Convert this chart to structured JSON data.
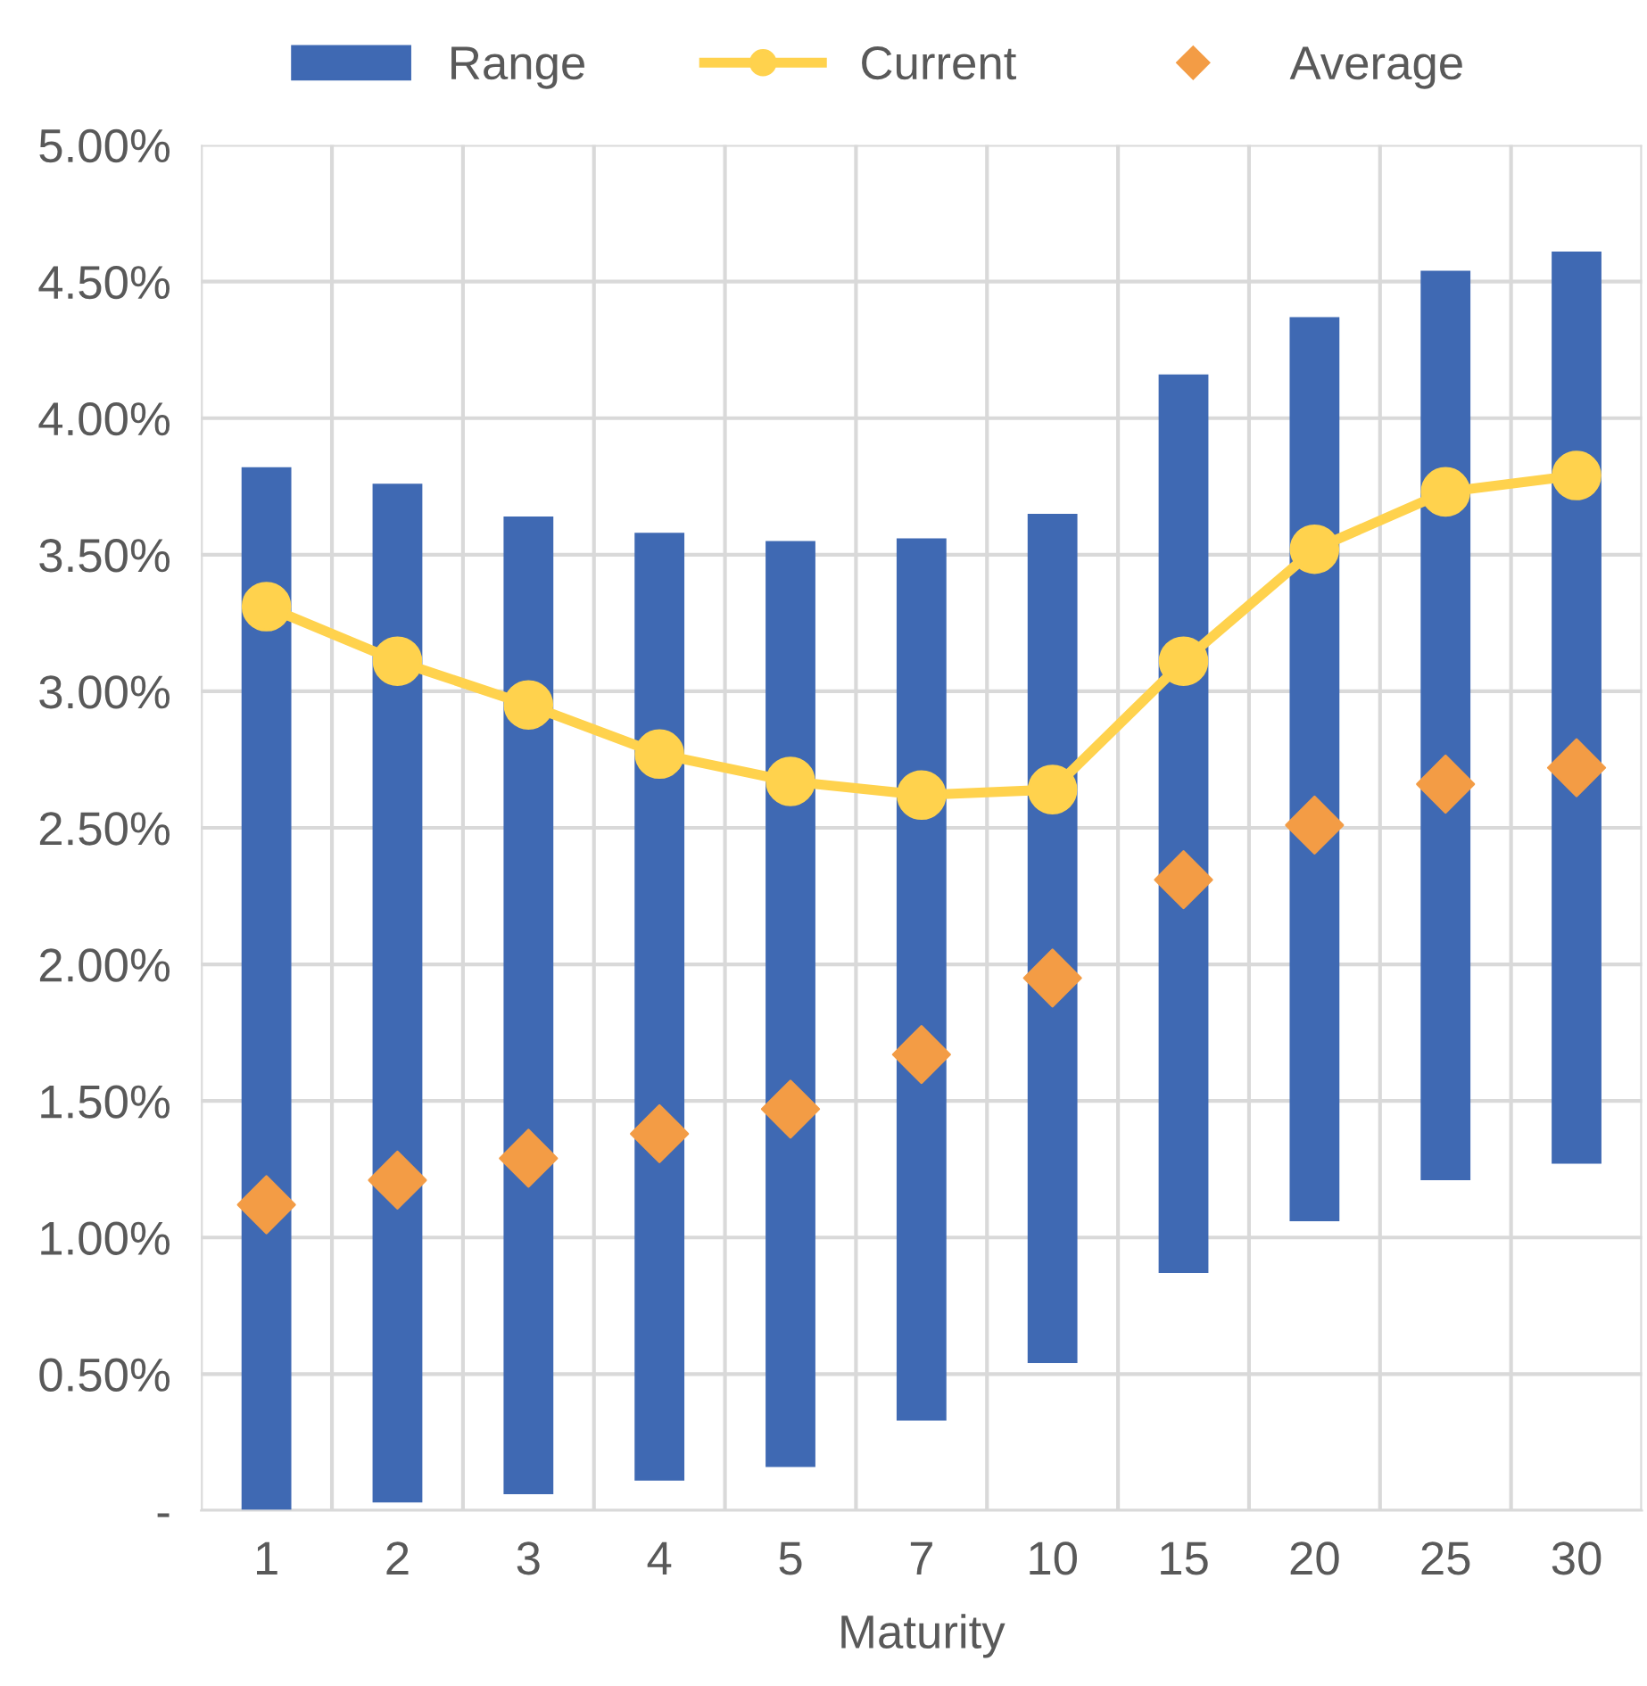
{
  "chart_data": {
    "type": "bar",
    "xlabel": "Maturity",
    "categories": [
      "1",
      "2",
      "3",
      "4",
      "5",
      "7",
      "10",
      "15",
      "20",
      "25",
      "30"
    ],
    "series": [
      {
        "name": "Range",
        "color": "#3f69b3",
        "base": [
          0,
          0.03,
          0.06,
          0.11,
          0.16,
          0.33,
          0.54,
          0.87,
          1.06,
          1.21,
          1.27
        ],
        "values": [
          3.82,
          3.73,
          3.58,
          3.47,
          3.39,
          3.23,
          3.11,
          3.29,
          3.31,
          3.33,
          3.34
        ]
      },
      {
        "name": "Current",
        "type": "line",
        "color": "#ffd24d",
        "marker": "circle",
        "values": [
          3.31,
          3.11,
          2.95,
          2.77,
          2.67,
          2.62,
          2.64,
          3.11,
          3.52,
          3.73,
          3.79
        ]
      },
      {
        "name": "Average",
        "type": "scatter",
        "color": "#f39c45",
        "marker": "diamond",
        "values": [
          1.12,
          1.21,
          1.29,
          1.38,
          1.47,
          1.67,
          1.95,
          2.31,
          2.51,
          2.66,
          2.72
        ]
      }
    ],
    "ylim": [
      0,
      5
    ],
    "yticks": [
      {
        "value": 0,
        "label": "-"
      },
      {
        "value": 0.5,
        "label": "0.50%"
      },
      {
        "value": 1,
        "label": "1.00%"
      },
      {
        "value": 1.5,
        "label": "1.50%"
      },
      {
        "value": 2,
        "label": "2.00%"
      },
      {
        "value": 2.5,
        "label": "2.50%"
      },
      {
        "value": 3,
        "label": "3.00%"
      },
      {
        "value": 3.5,
        "label": "3.50%"
      },
      {
        "value": 4,
        "label": "4.00%"
      },
      {
        "value": 4.5,
        "label": "4.50%"
      },
      {
        "value": 5,
        "label": "5.00%"
      }
    ],
    "grid": true,
    "legend": "top"
  }
}
